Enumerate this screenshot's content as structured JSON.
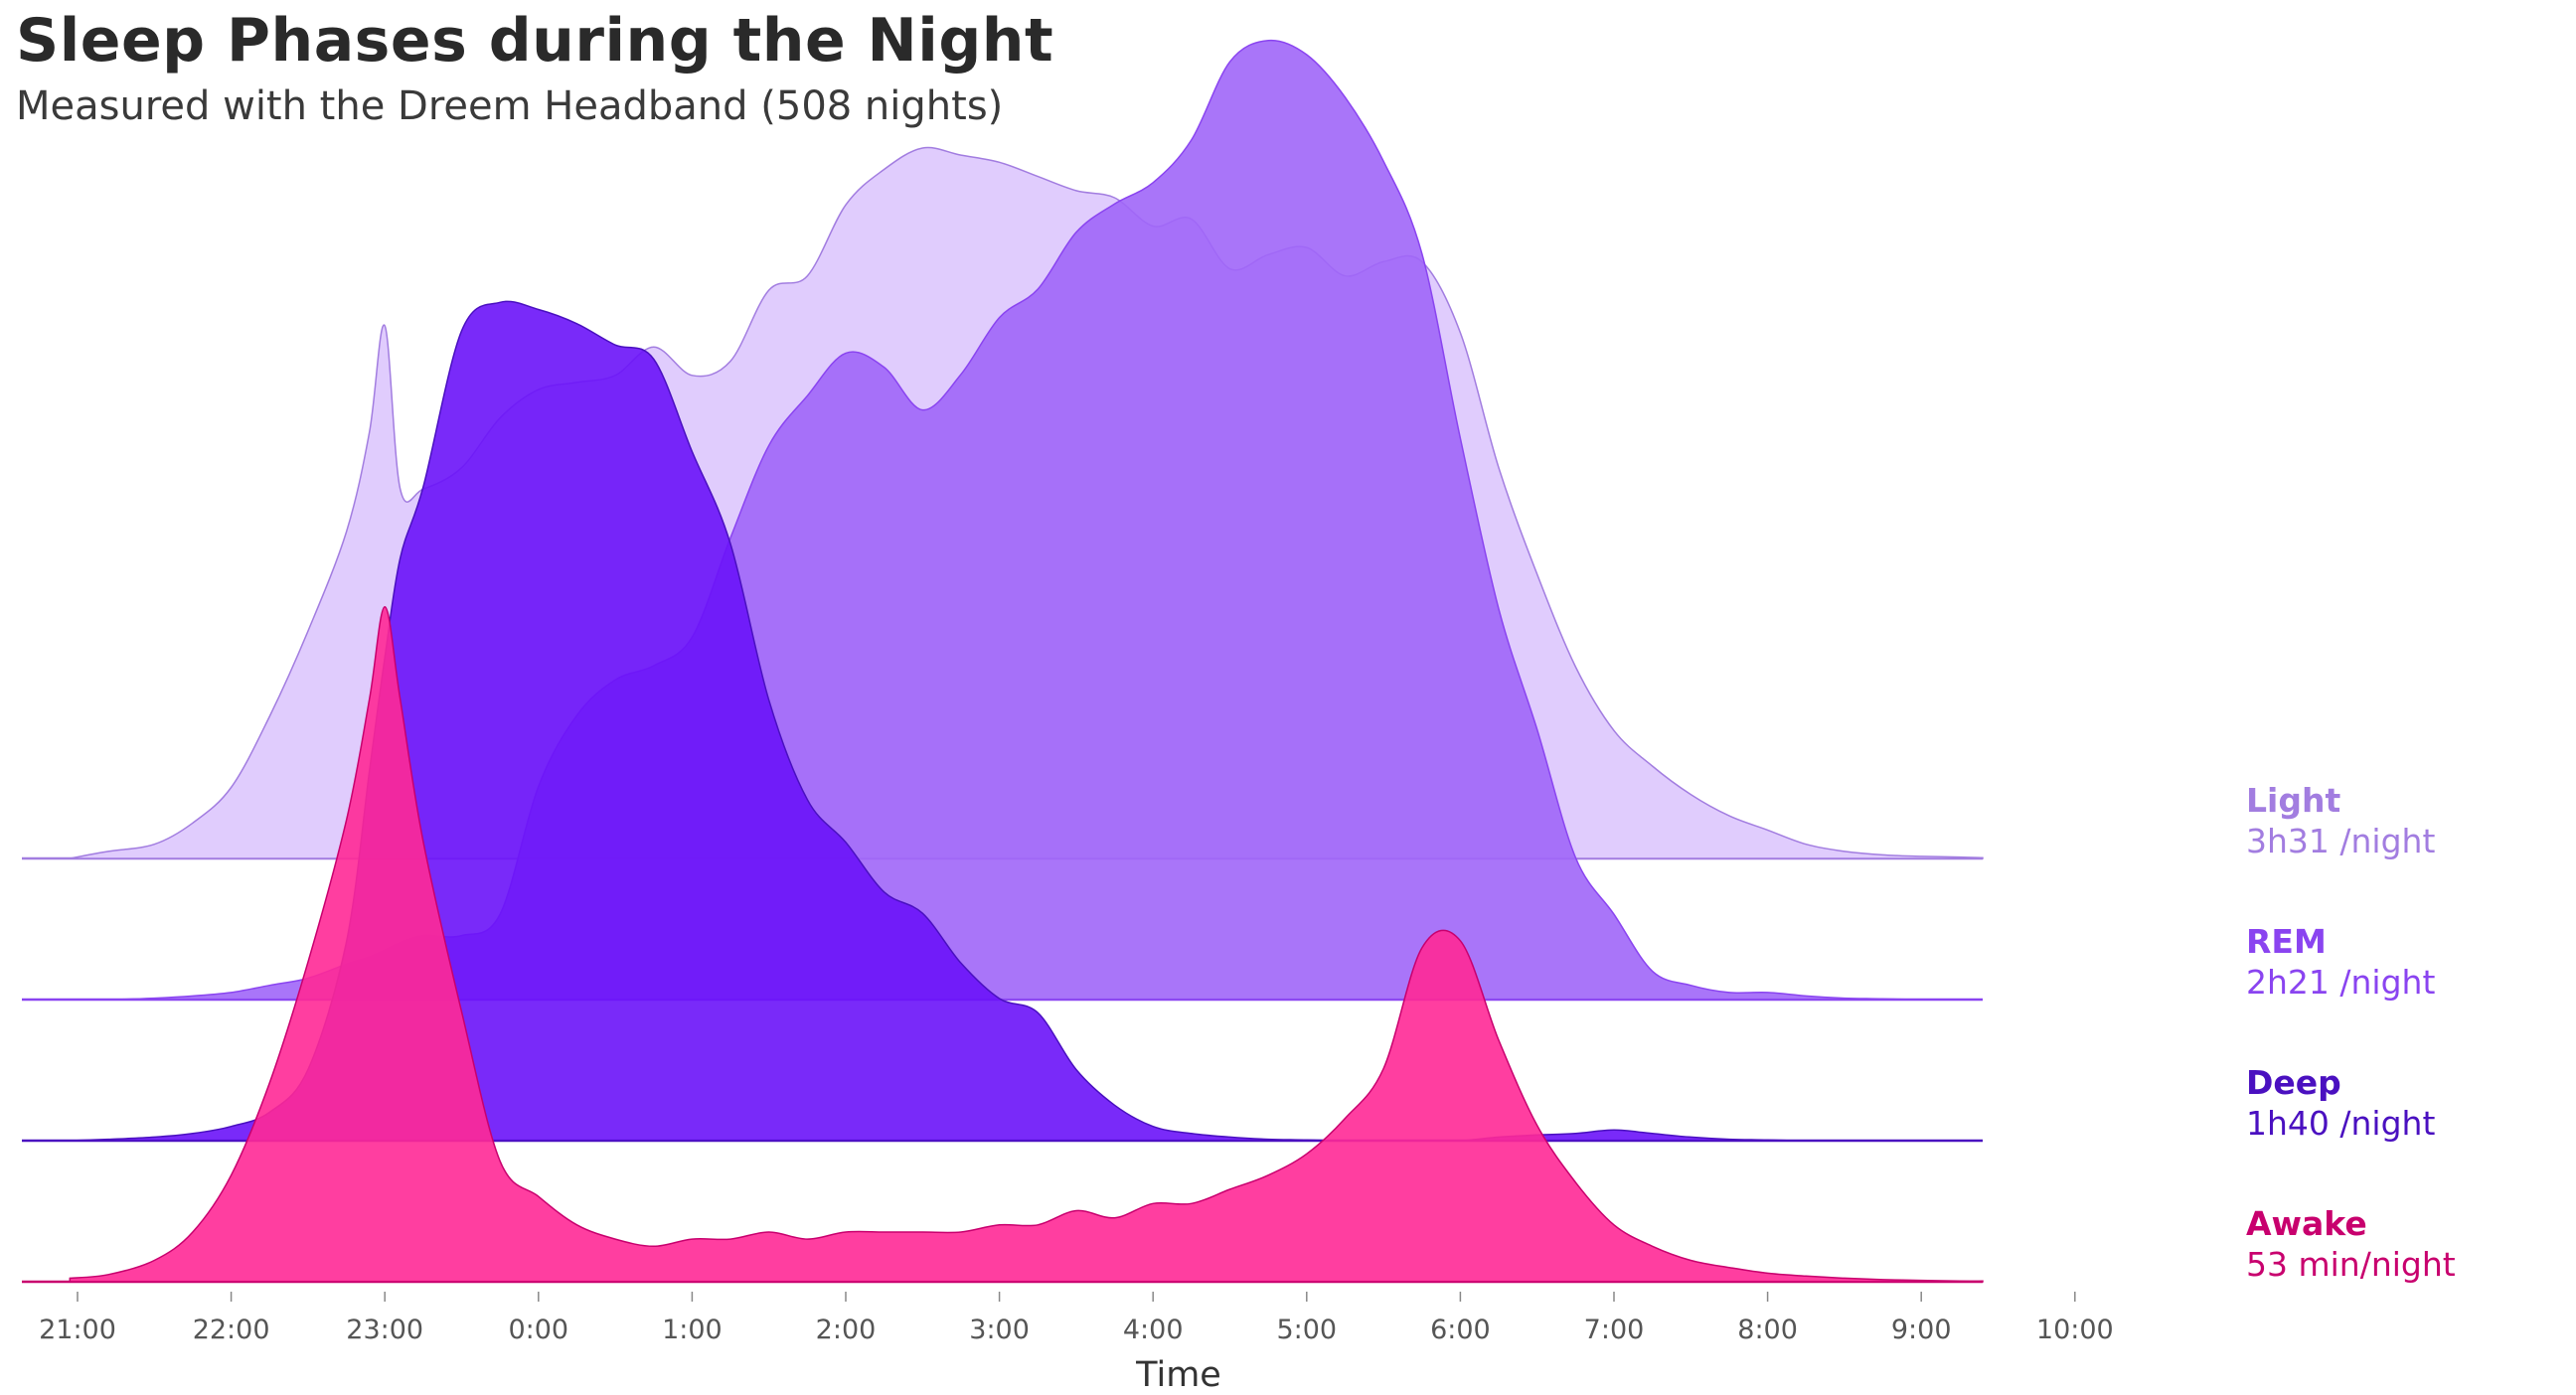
{
  "title": "Sleep Phases during the Night",
  "subtitle": "Measured with the Dreem Headband (508 nights)",
  "chart_data": {
    "type": "area",
    "layout": "ridgeline",
    "xlabel": "Time",
    "x_ticks": [
      "21:00",
      "22:00",
      "23:00",
      "0:00",
      "1:00",
      "2:00",
      "3:00",
      "4:00",
      "5:00",
      "6:00",
      "7:00",
      "8:00",
      "9:00",
      "10:00"
    ],
    "x_hours_range": [
      20.95,
      34.0
    ],
    "x": [
      20.95,
      21.2,
      21.5,
      21.75,
      22,
      22.25,
      22.5,
      22.75,
      22.9,
      23,
      23.1,
      23.25,
      23.5,
      23.75,
      24,
      24.25,
      24.5,
      24.75,
      25,
      25.25,
      25.5,
      25.75,
      26,
      26.25,
      26.5,
      26.75,
      27,
      27.25,
      27.5,
      27.75,
      28,
      28.25,
      28.5,
      28.75,
      29,
      29.25,
      29.5,
      29.75,
      30,
      30.25,
      30.5,
      30.75,
      31,
      31.25,
      31.5,
      31.75,
      32,
      32.25,
      32.5,
      32.75,
      33,
      33.25,
      33.4
    ],
    "series": [
      {
        "name": "Light",
        "summary": "3h31 /night",
        "color": "#a27de0",
        "fill": "#e0ccfd",
        "values": [
          0,
          0.01,
          0.02,
          0.05,
          0.1,
          0.2,
          0.32,
          0.46,
          0.6,
          0.75,
          0.52,
          0.52,
          0.55,
          0.62,
          0.66,
          0.67,
          0.68,
          0.72,
          0.68,
          0.7,
          0.8,
          0.82,
          0.92,
          0.97,
          1.0,
          0.99,
          0.98,
          0.96,
          0.94,
          0.93,
          0.89,
          0.9,
          0.83,
          0.85,
          0.86,
          0.82,
          0.84,
          0.84,
          0.74,
          0.55,
          0.4,
          0.27,
          0.18,
          0.13,
          0.09,
          0.06,
          0.04,
          0.02,
          0.01,
          0.005,
          0.003,
          0.002,
          0.001
        ]
      },
      {
        "name": "REM",
        "summary": "2h21 /night",
        "color": "#8a44f0",
        "fill": "#a066f8",
        "values": [
          0,
          0,
          0.002,
          0.005,
          0.01,
          0.02,
          0.03,
          0.05,
          0.06,
          0.07,
          0.08,
          0.09,
          0.09,
          0.12,
          0.3,
          0.4,
          0.45,
          0.47,
          0.51,
          0.65,
          0.78,
          0.85,
          0.91,
          0.89,
          0.83,
          0.88,
          0.96,
          1.0,
          1.08,
          1.12,
          1.15,
          1.21,
          1.32,
          1.35,
          1.33,
          1.27,
          1.18,
          1.05,
          0.79,
          0.55,
          0.38,
          0.2,
          0.12,
          0.04,
          0.02,
          0.01,
          0.01,
          0.005,
          0.002,
          0.001,
          0,
          0,
          0
        ]
      },
      {
        "name": "Deep",
        "summary": "1h40 /night",
        "color": "#4a10c0",
        "fill": "#6a13f8",
        "values": [
          0,
          0.002,
          0.005,
          0.01,
          0.02,
          0.04,
          0.1,
          0.28,
          0.52,
          0.68,
          0.82,
          0.92,
          1.14,
          1.18,
          1.17,
          1.15,
          1.12,
          1.1,
          0.97,
          0.84,
          0.62,
          0.48,
          0.42,
          0.35,
          0.32,
          0.25,
          0.2,
          0.18,
          0.1,
          0.05,
          0.02,
          0.01,
          0.005,
          0.002,
          0.001,
          0,
          0,
          0,
          0,
          0.005,
          0.008,
          0.01,
          0.015,
          0.01,
          0.005,
          0.002,
          0.001,
          0,
          0,
          0,
          0,
          0,
          0
        ]
      },
      {
        "name": "Awake",
        "summary": "53 min/night",
        "color": "#c8006e",
        "fill": "#ff2996",
        "values": [
          0.005,
          0.01,
          0.03,
          0.07,
          0.15,
          0.28,
          0.45,
          0.65,
          0.82,
          0.95,
          0.82,
          0.62,
          0.38,
          0.17,
          0.12,
          0.08,
          0.06,
          0.05,
          0.06,
          0.06,
          0.07,
          0.06,
          0.07,
          0.07,
          0.07,
          0.07,
          0.08,
          0.08,
          0.1,
          0.09,
          0.11,
          0.11,
          0.13,
          0.15,
          0.18,
          0.23,
          0.3,
          0.47,
          0.48,
          0.34,
          0.22,
          0.14,
          0.08,
          0.05,
          0.03,
          0.02,
          0.012,
          0.008,
          0.005,
          0.003,
          0.002,
          0.001,
          0.001
        ]
      }
    ],
    "legend_position": "right",
    "grid": false
  }
}
